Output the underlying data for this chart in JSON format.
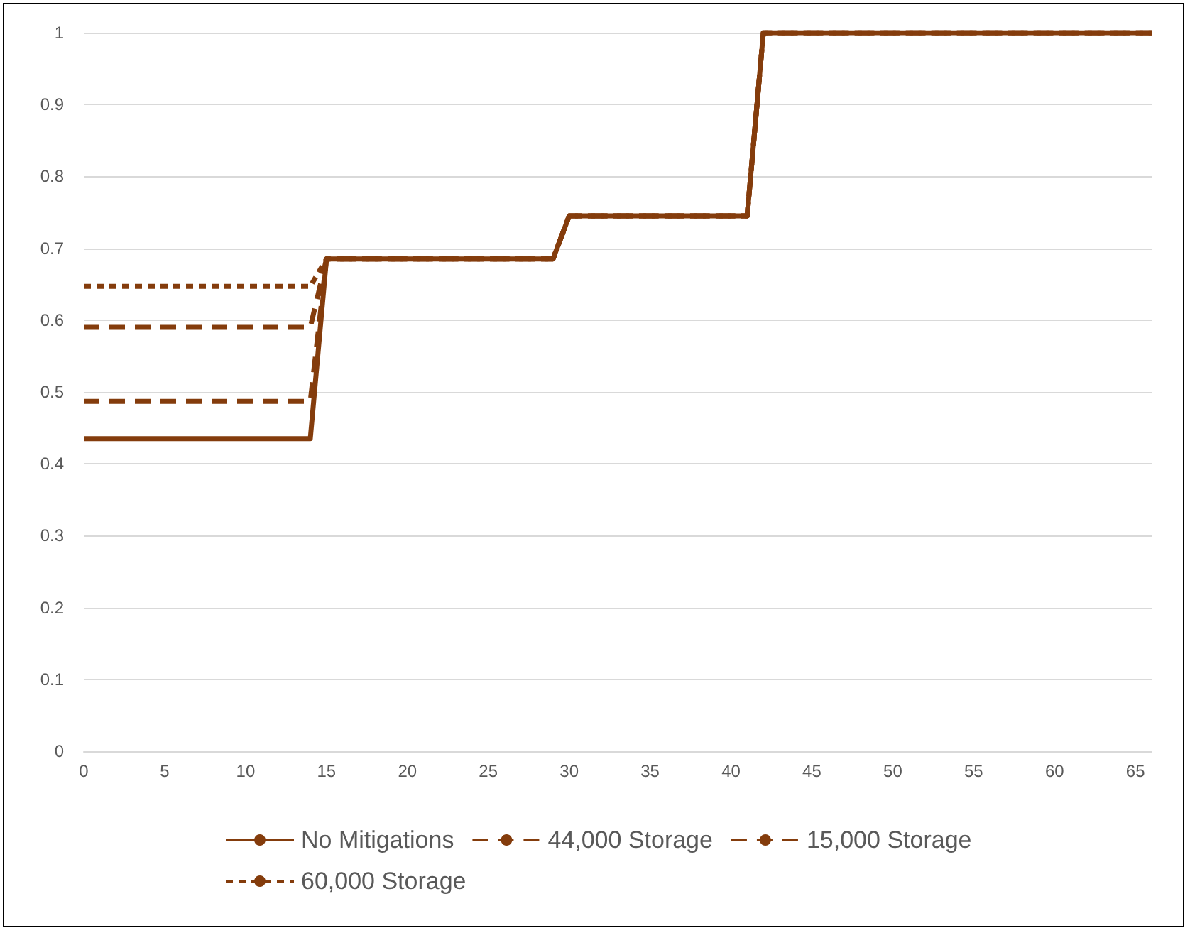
{
  "chart_data": {
    "type": "step",
    "xlim": [
      0,
      66
    ],
    "xticks": [
      0,
      5,
      10,
      15,
      20,
      25,
      30,
      35,
      40,
      45,
      50,
      55,
      60,
      65
    ],
    "ylim": [
      0,
      1
    ],
    "yticks": [
      0,
      0.1,
      0.2,
      0.3,
      0.4,
      0.5,
      0.6,
      0.7,
      0.8,
      0.9,
      1
    ],
    "grid": "y",
    "legend": "bottom",
    "marker": "none",
    "series": [
      {
        "name": "No Mitigations",
        "color": "#843c0c",
        "line_style": "solid",
        "x": [
          0,
          14,
          15,
          29,
          30,
          41,
          42,
          66
        ],
        "values": [
          0.435,
          0.435,
          0.685,
          0.685,
          0.745,
          0.745,
          1,
          1
        ]
      },
      {
        "name": "44,000 Storage",
        "color": "#843c0c",
        "line_style": "dashed",
        "x": [
          0,
          14,
          15,
          29,
          30,
          41,
          42,
          66
        ],
        "values": [
          0.59,
          0.59,
          0.685,
          0.685,
          0.745,
          0.745,
          1,
          1
        ]
      },
      {
        "name": "15,000 Storage",
        "color": "#843c0c",
        "line_style": "dashed",
        "x": [
          0,
          14,
          15,
          29,
          30,
          41,
          42,
          66
        ],
        "values": [
          0.487,
          0.487,
          0.685,
          0.685,
          0.745,
          0.745,
          1,
          1
        ]
      },
      {
        "name": "60,000 Storage",
        "color": "#843c0c",
        "line_style": "dotted",
        "x": [
          0,
          14,
          15,
          29,
          30,
          41,
          42,
          66
        ],
        "values": [
          0.647,
          0.647,
          0.685,
          0.685,
          0.745,
          0.745,
          1,
          1
        ]
      }
    ]
  }
}
